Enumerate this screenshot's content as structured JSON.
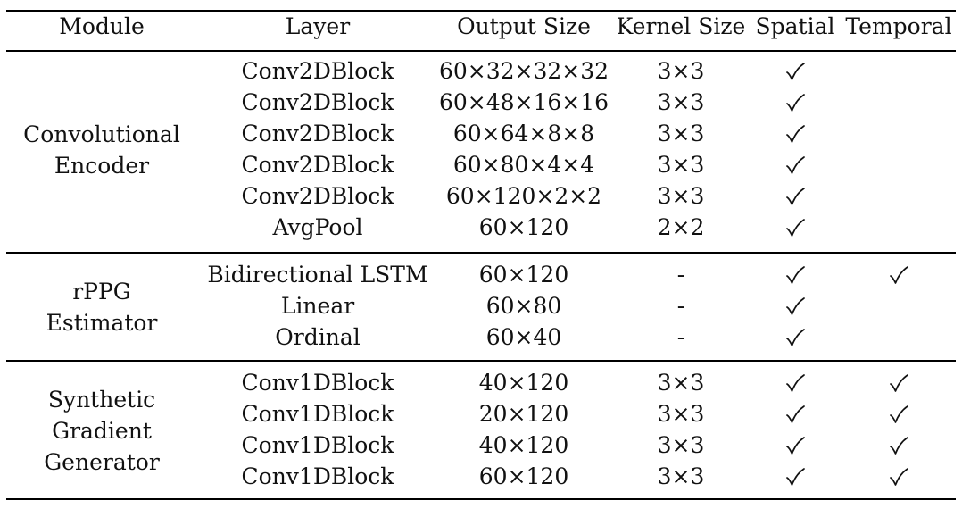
{
  "headers": [
    "Module",
    "Layer",
    "Output Size",
    "Kernel Size",
    "Spatial",
    "Temporal"
  ],
  "check_symbol": "✓",
  "groups": [
    {
      "module_lines": [
        "Convolutional",
        "Encoder"
      ],
      "rows": [
        {
          "layer": "Conv2DBlock",
          "output": "60×32×32×32",
          "kernel": "3×3",
          "spatial": true,
          "temporal": false
        },
        {
          "layer": "Conv2DBlock",
          "output": "60×48×16×16",
          "kernel": "3×3",
          "spatial": true,
          "temporal": false
        },
        {
          "layer": "Conv2DBlock",
          "output": "60×64×8×8",
          "kernel": "3×3",
          "spatial": true,
          "temporal": false
        },
        {
          "layer": "Conv2DBlock",
          "output": "60×80×4×4",
          "kernel": "3×3",
          "spatial": true,
          "temporal": false
        },
        {
          "layer": "Conv2DBlock",
          "output": "60×120×2×2",
          "kernel": "3×3",
          "spatial": true,
          "temporal": false
        },
        {
          "layer": "AvgPool",
          "output": "60×120",
          "kernel": "2×2",
          "spatial": true,
          "temporal": false
        }
      ]
    },
    {
      "module_lines": [
        "rPPG",
        "Estimator"
      ],
      "rows": [
        {
          "layer": "Bidirectional LSTM",
          "output": "60×120",
          "kernel": "-",
          "spatial": true,
          "temporal": true
        },
        {
          "layer": "Linear",
          "output": "60×80",
          "kernel": "-",
          "spatial": true,
          "temporal": false
        },
        {
          "layer": "Ordinal",
          "output": "60×40",
          "kernel": "-",
          "spatial": true,
          "temporal": false
        }
      ]
    },
    {
      "module_lines": [
        "Synthetic",
        "Gradient",
        "Generator"
      ],
      "rows": [
        {
          "layer": "Conv1DBlock",
          "output": "40×120",
          "kernel": "3×3",
          "spatial": true,
          "temporal": true
        },
        {
          "layer": "Conv1DBlock",
          "output": "20×120",
          "kernel": "3×3",
          "spatial": true,
          "temporal": true
        },
        {
          "layer": "Conv1DBlock",
          "output": "40×120",
          "kernel": "3×3",
          "spatial": true,
          "temporal": true
        },
        {
          "layer": "Conv1DBlock",
          "output": "60×120",
          "kernel": "3×3",
          "spatial": true,
          "temporal": true
        }
      ]
    }
  ]
}
